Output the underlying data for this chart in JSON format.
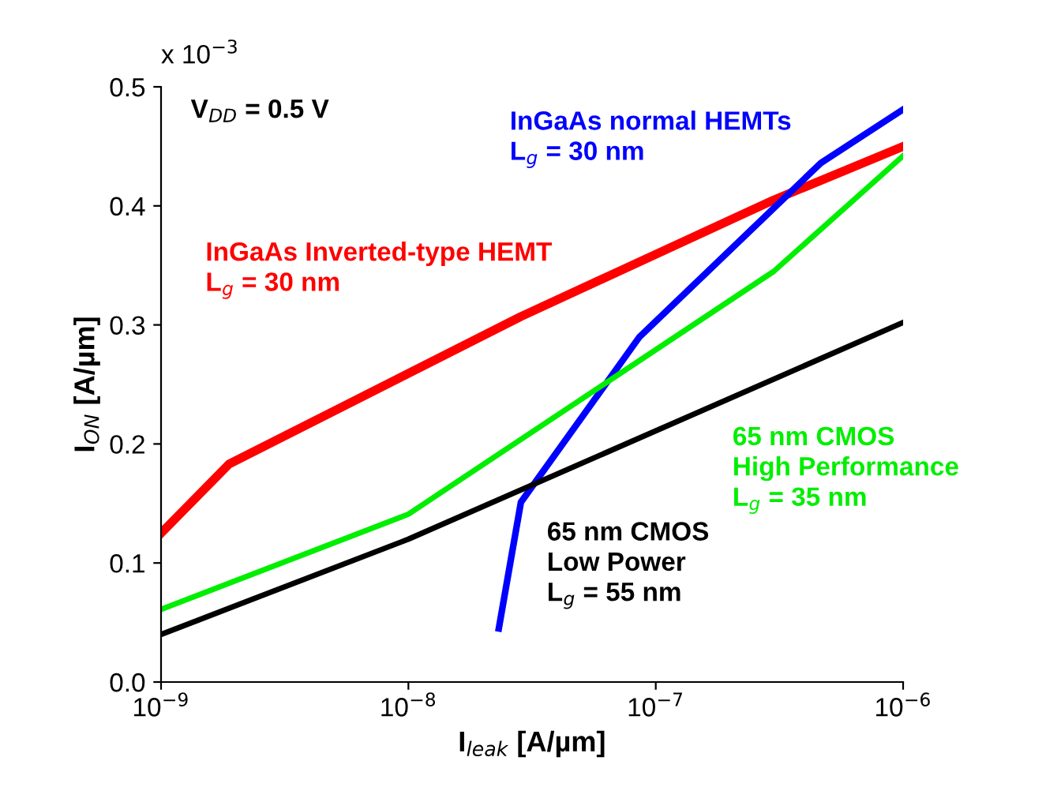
{
  "chart_data": {
    "type": "line",
    "xlabel": "I$_{leak}$ [A/µm]",
    "ylabel": "I$_{ON}$ [A/µm]",
    "log": "x",
    "xlim": [
      1e-09,
      1e-06
    ],
    "ylim": [
      0,
      0.5
    ],
    "xticks": [
      {
        "value": 1e-09,
        "label": "10$^{−9}$"
      },
      {
        "value": 1e-08,
        "label": "10$^{−8}$"
      },
      {
        "value": 1e-07,
        "label": "10$^{−7}$"
      },
      {
        "value": 1e-06,
        "label": "10$^{−6}$"
      }
    ],
    "yticks": [
      {
        "value": 0,
        "label": "0.0"
      },
      0.1,
      0.2,
      0.3,
      0.4,
      0.5
    ],
    "grid": false,
    "legend": false,
    "marker": "none",
    "line_style": "solid",
    "annotations": [
      "x 10$^{−3}$",
      "V$_{DD}$ = 0.5 V"
    ],
    "series": [
      {
        "name": "InGaAs Inverted-type HEMT\nL$_{g}$ = 30 nm",
        "color": "#ff0000",
        "x": [
          1e-09,
          1.88e-09,
          2.85e-08,
          3e-07,
          1e-06
        ],
        "values": [
          0.125,
          0.183,
          0.307,
          0.405,
          0.45
        ]
      },
      {
        "name": "InGaAs normal HEMTs\nL$_{g}$ = 30 nm",
        "color": "#0000ff",
        "x": [
          2.32e-08,
          2.85e-08,
          8.6e-08,
          4.65e-07,
          1e-06
        ],
        "values": [
          0.045,
          0.151,
          0.29,
          0.436,
          0.481
        ]
      },
      {
        "name": "65 nm CMOS\nHigh Performance\nL$_{g}$ = 35 nm",
        "color": "#00ee00",
        "x": [
          1e-09,
          1e-08,
          3e-07,
          1e-06
        ],
        "values": [
          0.061,
          0.141,
          0.345,
          0.442
        ]
      },
      {
        "name": "65 nm CMOS\nLow Power\nL$_{g}$ = 55 nm",
        "color": "#000000",
        "x": [
          1e-09,
          1e-08,
          1e-06
        ],
        "values": [
          0.04,
          0.12,
          0.302
        ]
      }
    ]
  }
}
